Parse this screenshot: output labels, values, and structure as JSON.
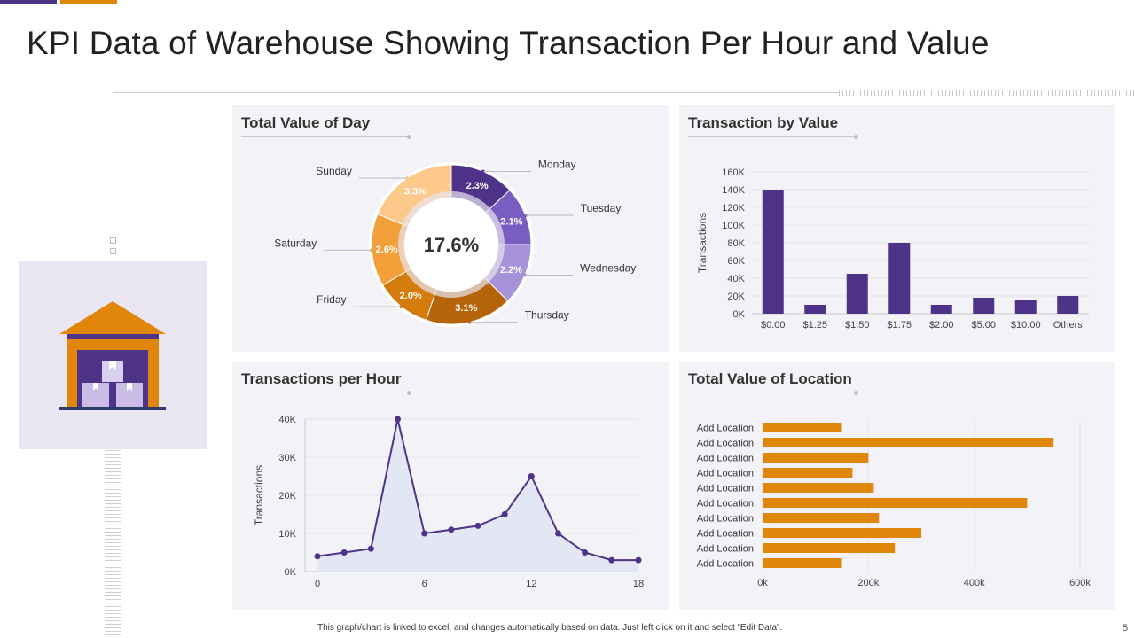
{
  "title": "KPI Data of Warehouse Showing Transaction Per Hour and Value",
  "colors": {
    "purple": "#4f3389",
    "orange": "#e0860b"
  },
  "footnote": "This graph/chart is linked to excel, and changes automatically based on data. Just left click on it and select “Edit Data”.",
  "page_number": "5",
  "icon": "warehouse-icon",
  "chart_data": [
    {
      "type": "pie",
      "title": "Total Value of Day",
      "center_label": "17.6%",
      "slices": [
        {
          "label": "Monday",
          "value": 2.3,
          "display": "2.3%",
          "color": "#4f3389"
        },
        {
          "label": "Tuesday",
          "value": 2.1,
          "display": "2.1%",
          "color": "#7a5dc0"
        },
        {
          "label": "Wednesday",
          "value": 2.2,
          "display": "2.2%",
          "color": "#a592d8"
        },
        {
          "label": "Thursday",
          "value": 3.1,
          "display": "3.1%",
          "color": "#b5640a"
        },
        {
          "label": "Friday",
          "value": 2.0,
          "display": "2.0%",
          "color": "#d47c0b"
        },
        {
          "label": "Saturday",
          "value": 2.6,
          "display": "2.6%",
          "color": "#f2a13a"
        },
        {
          "label": "Sunday",
          "value": 3.3,
          "display": "3.3%",
          "color": "#fcc98a"
        }
      ]
    },
    {
      "type": "bar",
      "title": "Transaction by Value",
      "categories": [
        "$0.00",
        "$1.25",
        "$1.50",
        "$1.75",
        "$2.00",
        "$5.00",
        "$10.00",
        "Others"
      ],
      "values": [
        140000,
        10000,
        45000,
        80000,
        10000,
        18000,
        15000,
        20000
      ],
      "ylabel": "Transactions",
      "ylim": [
        0,
        160000
      ],
      "yticks": [
        "0K",
        "20K",
        "40K",
        "60K",
        "80K",
        "100K",
        "120K",
        "140K",
        "160K"
      ]
    },
    {
      "type": "line",
      "title": "Transactions per Hour",
      "x": [
        0,
        1.5,
        3,
        4.5,
        6,
        7.5,
        9,
        10.5,
        12,
        13.5,
        15,
        16.5,
        18
      ],
      "y": [
        4000,
        5000,
        6000,
        40000,
        10000,
        11000,
        12000,
        15000,
        25000,
        10000,
        5000,
        3000,
        3000
      ],
      "ylabel": "Transactions",
      "xlim": [
        0,
        18
      ],
      "ylim": [
        0,
        40000
      ],
      "xticks": [
        "0",
        "6",
        "12",
        "18"
      ],
      "yticks": [
        "0K",
        "10K",
        "20K",
        "30K",
        "40K"
      ]
    },
    {
      "type": "bar",
      "orientation": "horizontal",
      "title": "Total Value of Location",
      "categories": [
        "Add Location",
        "Add Location",
        "Add Location",
        "Add Location",
        "Add Location",
        "Add Location",
        "Add Location",
        "Add Location",
        "Add Location",
        "Add Location"
      ],
      "values": [
        150000,
        550000,
        200000,
        170000,
        210000,
        500000,
        220000,
        300000,
        250000,
        150000
      ],
      "xlim": [
        0,
        600000
      ],
      "xticks": [
        "0k",
        "200k",
        "400k",
        "600k"
      ]
    }
  ]
}
